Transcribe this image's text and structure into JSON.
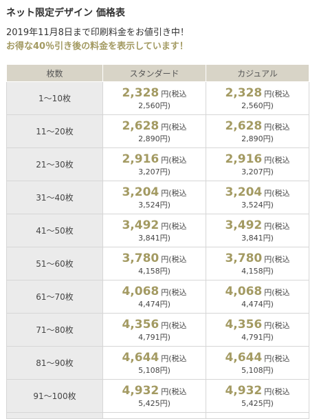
{
  "page": {
    "title": "ネット限定デザイン 価格表",
    "notice": "2019年11月8日まで印刷料金をお値引き中！",
    "highlight": "お得な40％引き後の料金を表示しています！"
  },
  "table": {
    "headers": [
      "枚数",
      "スタンダード",
      "カジュアル"
    ],
    "unit_label": "円(税込",
    "rows": [
      {
        "qty": "1～10枚",
        "standard": {
          "price": "2,328",
          "tax_incl": "2,560円)"
        },
        "casual": {
          "price": "2,328",
          "tax_incl": "2,560円)"
        }
      },
      {
        "qty": "11～20枚",
        "standard": {
          "price": "2,628",
          "tax_incl": "2,890円)"
        },
        "casual": {
          "price": "2,628",
          "tax_incl": "2,890円)"
        }
      },
      {
        "qty": "21～30枚",
        "standard": {
          "price": "2,916",
          "tax_incl": "3,207円)"
        },
        "casual": {
          "price": "2,916",
          "tax_incl": "3,207円)"
        }
      },
      {
        "qty": "31～40枚",
        "standard": {
          "price": "3,204",
          "tax_incl": "3,524円)"
        },
        "casual": {
          "price": "3,204",
          "tax_incl": "3,524円)"
        }
      },
      {
        "qty": "41～50枚",
        "standard": {
          "price": "3,492",
          "tax_incl": "3,841円)"
        },
        "casual": {
          "price": "3,492",
          "tax_incl": "3,841円)"
        }
      },
      {
        "qty": "51～60枚",
        "standard": {
          "price": "3,780",
          "tax_incl": "4,158円)"
        },
        "casual": {
          "price": "3,780",
          "tax_incl": "4,158円)"
        }
      },
      {
        "qty": "61～70枚",
        "standard": {
          "price": "4,068",
          "tax_incl": "4,474円)"
        },
        "casual": {
          "price": "4,068",
          "tax_incl": "4,474円)"
        }
      },
      {
        "qty": "71～80枚",
        "standard": {
          "price": "4,356",
          "tax_incl": "4,791円)"
        },
        "casual": {
          "price": "4,356",
          "tax_incl": "4,791円)"
        }
      },
      {
        "qty": "81～90枚",
        "standard": {
          "price": "4,644",
          "tax_incl": "5,108円)"
        },
        "casual": {
          "price": "4,644",
          "tax_incl": "5,108円)"
        }
      },
      {
        "qty": "91～100枚",
        "standard": {
          "price": "4,932",
          "tax_incl": "5,425円)"
        },
        "casual": {
          "price": "4,932",
          "tax_incl": "5,425円)"
        }
      }
    ]
  },
  "colors": {
    "accent": "#a39a62",
    "header_bg": "#d8d4c7",
    "qty_bg": "#ebebeb"
  }
}
